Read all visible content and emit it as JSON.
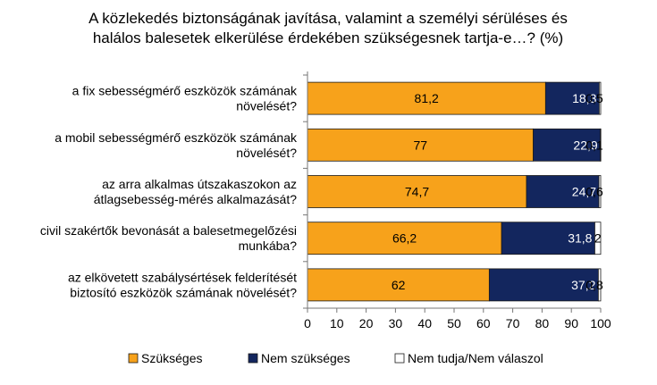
{
  "chart_data": {
    "type": "bar",
    "orientation": "horizontal",
    "stacked": true,
    "title_lines": [
      "A közlekedés biztonságának javítása, valamint a személyi sérüléses és",
      "halálos balesetek elkerülése érdekében szükségesnek tartja-e…? (%)"
    ],
    "categories": [
      [
        "a fix sebességmérő eszközök számának",
        "növelését?"
      ],
      [
        "a mobil sebességmérő eszközök számának",
        "növelését?"
      ],
      [
        "az arra alkalmas útszakaszokon az",
        "átlagsebesség-mérés alkalmazását?"
      ],
      [
        "civil szakértők bevonását a balesetmegelőzési",
        "munkába?"
      ],
      [
        "az elkövetett szabálysértések felderítését",
        "biztosító eszközök számának növelését?"
      ]
    ],
    "series": [
      {
        "name": "Szükséges",
        "color": "#F7A21B",
        "label_color": "#000000",
        "values": [
          81.2,
          77,
          74.7,
          66.2,
          62
        ],
        "labels": [
          "81,2",
          "77",
          "74,7",
          "66,2",
          "62"
        ]
      },
      {
        "name": "Nem szükséges",
        "color": "#13265E",
        "label_color": "#FFFFFF",
        "values": [
          18.3,
          22.9,
          24.7,
          31.8,
          37.2
        ],
        "labels": [
          "18,3",
          "22,9",
          "24,7",
          "31,8",
          "37,2"
        ]
      },
      {
        "name": "Nem tudja/Nem válaszol",
        "color": "#FFFFFF",
        "label_color": "#000000",
        "values": [
          0.5,
          0.1,
          0.6,
          2,
          0.8
        ],
        "labels": [
          "0,5",
          "0,1",
          "0,6",
          "2",
          "0,8"
        ]
      }
    ],
    "xlim": [
      0,
      100
    ],
    "xticks": [
      0,
      10,
      20,
      30,
      40,
      50,
      60,
      70,
      80,
      90,
      100
    ],
    "grid": false,
    "legend_position": "bottom"
  }
}
